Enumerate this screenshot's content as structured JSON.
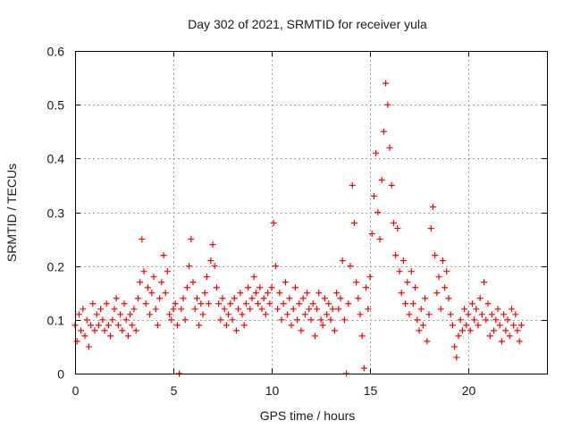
{
  "chart_data": {
    "type": "scatter",
    "title": "Day 302 of 2021, SRMTID for receiver yula",
    "xlabel": "GPS time / hours",
    "ylabel": "SRMTID / TECUs",
    "xlim": [
      0,
      24
    ],
    "ylim": [
      0,
      0.6
    ],
    "xticks": [
      0,
      5,
      10,
      15,
      20
    ],
    "xtick_labels": [
      "0",
      "5",
      "10",
      "15",
      "20"
    ],
    "yticks": [
      0,
      0.1,
      0.2,
      0.3,
      0.4,
      0.5,
      0.6
    ],
    "ytick_labels": [
      "0",
      "0.1",
      "0.2",
      "0.3",
      "0.4",
      "0.5",
      "0.6"
    ],
    "grid": true,
    "marker": "+",
    "color": "#ff0000",
    "series": [
      {
        "name": "SRMTID",
        "points": [
          [
            0.0,
            0.09
          ],
          [
            0.1,
            0.06
          ],
          [
            0.2,
            0.11
          ],
          [
            0.3,
            0.08
          ],
          [
            0.4,
            0.12
          ],
          [
            0.5,
            0.07
          ],
          [
            0.6,
            0.1
          ],
          [
            0.7,
            0.05
          ],
          [
            0.8,
            0.09
          ],
          [
            0.9,
            0.13
          ],
          [
            1.0,
            0.08
          ],
          [
            1.1,
            0.11
          ],
          [
            1.2,
            0.09
          ],
          [
            1.3,
            0.12
          ],
          [
            1.4,
            0.1
          ],
          [
            1.5,
            0.08
          ],
          [
            1.6,
            0.13
          ],
          [
            1.7,
            0.09
          ],
          [
            1.8,
            0.07
          ],
          [
            1.9,
            0.1
          ],
          [
            2.0,
            0.12
          ],
          [
            2.1,
            0.14
          ],
          [
            2.2,
            0.09
          ],
          [
            2.3,
            0.11
          ],
          [
            2.4,
            0.08
          ],
          [
            2.5,
            0.13
          ],
          [
            2.6,
            0.1
          ],
          [
            2.7,
            0.07
          ],
          [
            2.8,
            0.11
          ],
          [
            2.9,
            0.09
          ],
          [
            3.0,
            0.12
          ],
          [
            3.1,
            0.08
          ],
          [
            3.2,
            0.14
          ],
          [
            3.3,
            0.17
          ],
          [
            3.4,
            0.25
          ],
          [
            3.5,
            0.19
          ],
          [
            3.6,
            0.13
          ],
          [
            3.7,
            0.16
          ],
          [
            3.8,
            0.11
          ],
          [
            3.9,
            0.15
          ],
          [
            4.0,
            0.18
          ],
          [
            4.1,
            0.12
          ],
          [
            4.2,
            0.09
          ],
          [
            4.3,
            0.14
          ],
          [
            4.4,
            0.17
          ],
          [
            4.5,
            0.22
          ],
          [
            4.6,
            0.15
          ],
          [
            4.7,
            0.19
          ],
          [
            4.8,
            0.11
          ],
          [
            4.9,
            0.1
          ],
          [
            5.0,
            0.12
          ],
          [
            5.1,
            0.13
          ],
          [
            5.2,
            0.09
          ],
          [
            5.3,
            0.0
          ],
          [
            5.4,
            0.12
          ],
          [
            5.5,
            0.14
          ],
          [
            5.6,
            0.1
          ],
          [
            5.7,
            0.16
          ],
          [
            5.8,
            0.2
          ],
          [
            5.9,
            0.25
          ],
          [
            6.0,
            0.17
          ],
          [
            6.1,
            0.12
          ],
          [
            6.2,
            0.14
          ],
          [
            6.3,
            0.09
          ],
          [
            6.4,
            0.13
          ],
          [
            6.5,
            0.11
          ],
          [
            6.6,
            0.15
          ],
          [
            6.7,
            0.18
          ],
          [
            6.8,
            0.13
          ],
          [
            6.9,
            0.21
          ],
          [
            7.0,
            0.24
          ],
          [
            7.1,
            0.2
          ],
          [
            7.2,
            0.16
          ],
          [
            7.3,
            0.13
          ],
          [
            7.4,
            0.1
          ],
          [
            7.5,
            0.14
          ],
          [
            7.6,
            0.12
          ],
          [
            7.7,
            0.09
          ],
          [
            7.8,
            0.11
          ],
          [
            7.9,
            0.13
          ],
          [
            8.0,
            0.1
          ],
          [
            8.1,
            0.14
          ],
          [
            8.2,
            0.08
          ],
          [
            8.3,
            0.12
          ],
          [
            8.4,
            0.15
          ],
          [
            8.5,
            0.11
          ],
          [
            8.6,
            0.09
          ],
          [
            8.7,
            0.13
          ],
          [
            8.8,
            0.16
          ],
          [
            8.9,
            0.12
          ],
          [
            9.0,
            0.14
          ],
          [
            9.1,
            0.18
          ],
          [
            9.2,
            0.15
          ],
          [
            9.3,
            0.13
          ],
          [
            9.4,
            0.16
          ],
          [
            9.5,
            0.12
          ],
          [
            9.6,
            0.14
          ],
          [
            9.7,
            0.11
          ],
          [
            9.8,
            0.15
          ],
          [
            9.9,
            0.13
          ],
          [
            10.0,
            0.16
          ],
          [
            10.1,
            0.28
          ],
          [
            10.2,
            0.2
          ],
          [
            10.3,
            0.12
          ],
          [
            10.4,
            0.15
          ],
          [
            10.5,
            0.1
          ],
          [
            10.6,
            0.13
          ],
          [
            10.7,
            0.17
          ],
          [
            10.8,
            0.11
          ],
          [
            10.9,
            0.14
          ],
          [
            11.0,
            0.09
          ],
          [
            11.1,
            0.12
          ],
          [
            11.2,
            0.16
          ],
          [
            11.3,
            0.1
          ],
          [
            11.4,
            0.13
          ],
          [
            11.5,
            0.08
          ],
          [
            11.6,
            0.14
          ],
          [
            11.7,
            0.11
          ],
          [
            11.8,
            0.15
          ],
          [
            11.9,
            0.12
          ],
          [
            12.0,
            0.1
          ],
          [
            12.1,
            0.13
          ],
          [
            12.2,
            0.07
          ],
          [
            12.3,
            0.12
          ],
          [
            12.4,
            0.15
          ],
          [
            12.5,
            0.1
          ],
          [
            12.6,
            0.09
          ],
          [
            12.7,
            0.14
          ],
          [
            12.8,
            0.11
          ],
          [
            12.9,
            0.13
          ],
          [
            13.0,
            0.1
          ],
          [
            13.1,
            0.12
          ],
          [
            13.2,
            0.08
          ],
          [
            13.3,
            0.15
          ],
          [
            13.4,
            0.12
          ],
          [
            13.5,
            0.14
          ],
          [
            13.6,
            0.21
          ],
          [
            13.7,
            0.1
          ],
          [
            13.8,
            0.0
          ],
          [
            13.9,
            0.13
          ],
          [
            14.0,
            0.2
          ],
          [
            14.1,
            0.35
          ],
          [
            14.2,
            0.28
          ],
          [
            14.3,
            0.17
          ],
          [
            14.4,
            0.14
          ],
          [
            14.5,
            0.11
          ],
          [
            14.6,
            0.07
          ],
          [
            14.7,
            0.01
          ],
          [
            14.8,
            0.16
          ],
          [
            14.9,
            0.12
          ],
          [
            15.0,
            0.18
          ],
          [
            15.1,
            0.26
          ],
          [
            15.2,
            0.33
          ],
          [
            15.3,
            0.41
          ],
          [
            15.4,
            0.3
          ],
          [
            15.5,
            0.25
          ],
          [
            15.6,
            0.36
          ],
          [
            15.7,
            0.45
          ],
          [
            15.8,
            0.54
          ],
          [
            15.9,
            0.5
          ],
          [
            16.0,
            0.42
          ],
          [
            16.1,
            0.35
          ],
          [
            16.2,
            0.28
          ],
          [
            16.3,
            0.22
          ],
          [
            16.4,
            0.27
          ],
          [
            16.5,
            0.19
          ],
          [
            16.6,
            0.15
          ],
          [
            16.7,
            0.21
          ],
          [
            16.8,
            0.13
          ],
          [
            16.9,
            0.17
          ],
          [
            17.0,
            0.11
          ],
          [
            17.1,
            0.19
          ],
          [
            17.2,
            0.13
          ],
          [
            17.3,
            0.16
          ],
          [
            17.4,
            0.1
          ],
          [
            17.5,
            0.08
          ],
          [
            17.6,
            0.12
          ],
          [
            17.7,
            0.09
          ],
          [
            17.8,
            0.14
          ],
          [
            17.9,
            0.06
          ],
          [
            18.0,
            0.11
          ],
          [
            18.1,
            0.27
          ],
          [
            18.2,
            0.31
          ],
          [
            18.3,
            0.22
          ],
          [
            18.4,
            0.15
          ],
          [
            18.5,
            0.18
          ],
          [
            18.6,
            0.12
          ],
          [
            18.7,
            0.21
          ],
          [
            18.8,
            0.16
          ],
          [
            18.9,
            0.19
          ],
          [
            19.0,
            0.14
          ],
          [
            19.1,
            0.11
          ],
          [
            19.2,
            0.09
          ],
          [
            19.3,
            0.05
          ],
          [
            19.4,
            0.03
          ],
          [
            19.5,
            0.07
          ],
          [
            19.6,
            0.1
          ],
          [
            19.7,
            0.08
          ],
          [
            19.8,
            0.12
          ],
          [
            19.9,
            0.09
          ],
          [
            20.0,
            0.11
          ],
          [
            20.1,
            0.08
          ],
          [
            20.2,
            0.13
          ],
          [
            20.3,
            0.1
          ],
          [
            20.4,
            0.12
          ],
          [
            20.5,
            0.09
          ],
          [
            20.6,
            0.14
          ],
          [
            20.7,
            0.11
          ],
          [
            20.8,
            0.17
          ],
          [
            20.9,
            0.1
          ],
          [
            21.0,
            0.13
          ],
          [
            21.1,
            0.07
          ],
          [
            21.2,
            0.11
          ],
          [
            21.3,
            0.08
          ],
          [
            21.4,
            0.1
          ],
          [
            21.5,
            0.12
          ],
          [
            21.6,
            0.09
          ],
          [
            21.7,
            0.06
          ],
          [
            21.8,
            0.11
          ],
          [
            21.9,
            0.08
          ],
          [
            22.0,
            0.1
          ],
          [
            22.1,
            0.07
          ],
          [
            22.2,
            0.12
          ],
          [
            22.3,
            0.09
          ],
          [
            22.4,
            0.11
          ],
          [
            22.5,
            0.08
          ],
          [
            22.6,
            0.06
          ],
          [
            22.7,
            0.09
          ]
        ]
      }
    ]
  }
}
